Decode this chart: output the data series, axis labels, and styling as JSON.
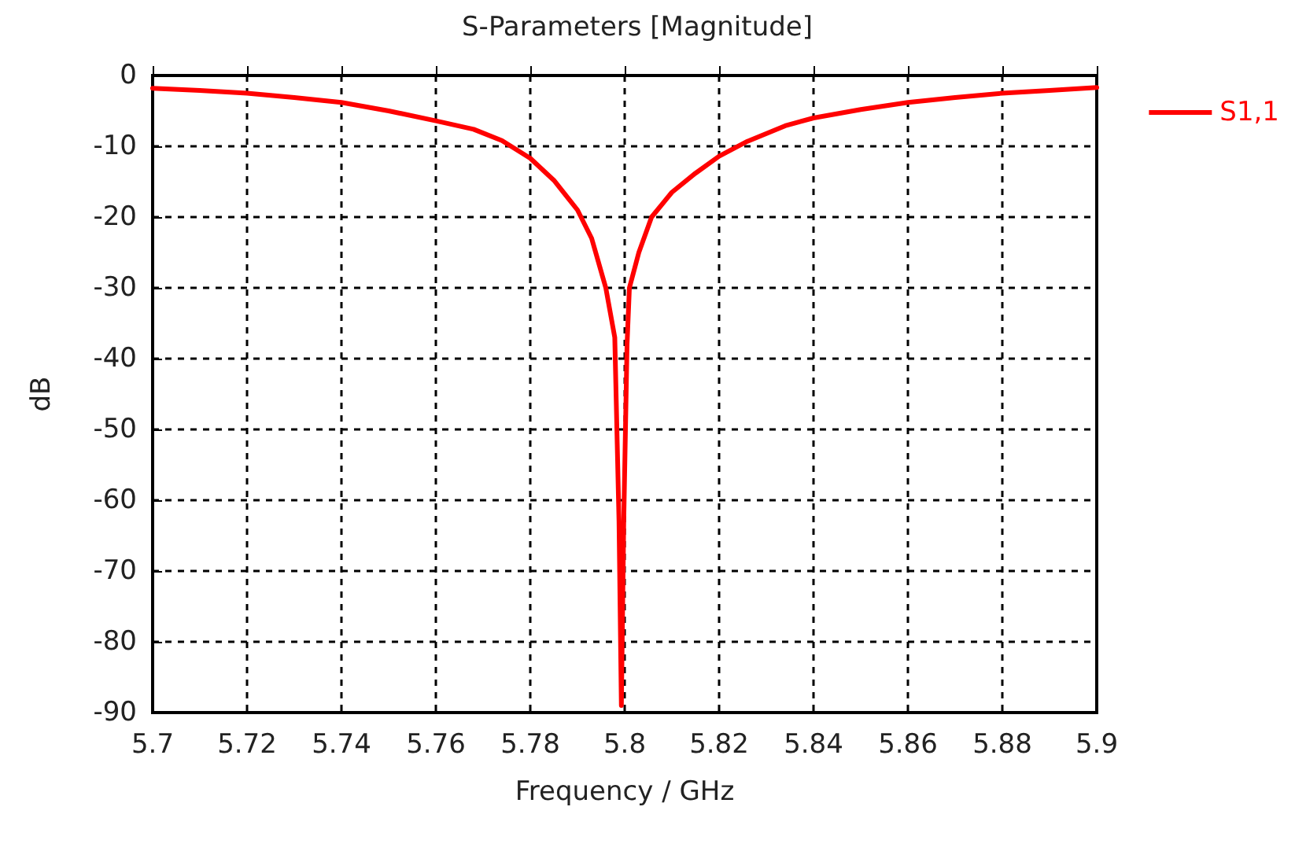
{
  "chart_data": {
    "type": "line",
    "title": "S-Parameters [Magnitude]",
    "xlabel": "Frequency / GHz",
    "ylabel": "dB",
    "series": [
      {
        "name": "S1,1",
        "color": "#ff0000",
        "x": [
          5.7,
          5.71,
          5.72,
          5.73,
          5.74,
          5.75,
          5.76,
          5.768,
          5.774,
          5.78,
          5.785,
          5.79,
          5.793,
          5.796,
          5.7979,
          5.7988,
          5.7993,
          5.7998,
          5.8005,
          5.801,
          5.803,
          5.8057,
          5.81,
          5.815,
          5.82,
          5.826,
          5.834,
          5.84,
          5.85,
          5.86,
          5.87,
          5.88,
          5.89,
          5.9
        ],
        "values": [
          -1.8,
          -2.1,
          -2.5,
          -3.1,
          -3.8,
          -5,
          -6.4,
          -7.6,
          -9.2,
          -11.7,
          -14.8,
          -19,
          -23,
          -30,
          -37,
          -63,
          -89,
          -63,
          -38,
          -30,
          -25,
          -20,
          -16.5,
          -13.8,
          -11.4,
          -9.3,
          -7.1,
          -6,
          -4.8,
          -3.8,
          -3.1,
          -2.5,
          -2.1,
          -1.7
        ]
      }
    ],
    "xlim": [
      5.7,
      5.9
    ],
    "xticks": [
      5.7,
      5.72,
      5.74,
      5.76,
      5.78,
      5.8,
      5.82,
      5.84,
      5.86,
      5.88,
      5.9
    ],
    "ylim": [
      -90,
      0
    ],
    "yticks": [
      -90,
      -80,
      -70,
      -60,
      -50,
      -40,
      -30,
      -20,
      -10,
      0
    ],
    "grid": true,
    "legend": "top right",
    "marker": "none",
    "line_style": "solid"
  }
}
